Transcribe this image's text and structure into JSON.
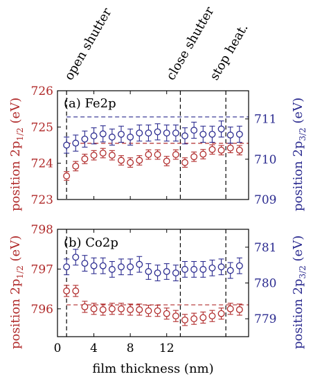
{
  "colors": {
    "red": "#b02a2a",
    "blue": "#2a2a8f",
    "axis": "#000000"
  },
  "x_tick_labels": [
    "0",
    "4",
    "8",
    "12"
  ],
  "xlabel": "film thickness (nm)",
  "events": [
    {
      "label": "open shutter",
      "x": 1
    },
    {
      "label": "close shutter",
      "x": 13.5
    },
    {
      "label": "stop heat.",
      "x": 18.5
    }
  ],
  "chart_data": [
    {
      "type": "scatter",
      "panel_label": "(a) Fe2p",
      "xlim": [
        0,
        21
      ],
      "x_ticks": [
        0,
        4,
        8,
        12
      ],
      "y_left": {
        "label_main": "position 2p",
        "label_sub": "1/2",
        "label_unit": " (eV)",
        "lim": [
          723,
          726
        ],
        "ticks": [
          723,
          724,
          725,
          726
        ]
      },
      "y_right": {
        "label_main": "position 2p",
        "label_sub": "3/2",
        "label_unit": " (eV)",
        "lim": [
          709,
          711.7
        ],
        "ticks": [
          709,
          710,
          711
        ]
      },
      "ref_line_left": 724.55,
      "ref_line_right": 711.05,
      "series": [
        {
          "axis": "left",
          "x": [
            1,
            2,
            3,
            4,
            5,
            6,
            7,
            8,
            9,
            10,
            11,
            12,
            13,
            14,
            15,
            16,
            17,
            18,
            19,
            20
          ],
          "y": [
            723.65,
            723.92,
            724.12,
            724.22,
            724.28,
            724.22,
            724.08,
            724.02,
            724.08,
            724.24,
            724.24,
            724.06,
            724.24,
            724.02,
            724.18,
            724.25,
            724.38,
            724.36,
            724.42,
            724.36
          ],
          "err": [
            0.12,
            0.13,
            0.13,
            0.13,
            0.13,
            0.13,
            0.13,
            0.13,
            0.13,
            0.13,
            0.13,
            0.13,
            0.13,
            0.13,
            0.13,
            0.13,
            0.13,
            0.13,
            0.13,
            0.13
          ]
        },
        {
          "axis": "right",
          "x": [
            1,
            2,
            3,
            4,
            5,
            6,
            7,
            8,
            9,
            10,
            11,
            12,
            13,
            14,
            15,
            16,
            17,
            18,
            19,
            20
          ],
          "y": [
            710.35,
            710.4,
            710.5,
            710.58,
            710.63,
            710.55,
            710.62,
            710.55,
            710.65,
            710.65,
            710.68,
            710.65,
            710.65,
            710.58,
            710.72,
            710.62,
            710.62,
            710.75,
            710.6,
            710.62
          ],
          "err": [
            0.2,
            0.2,
            0.2,
            0.2,
            0.2,
            0.2,
            0.2,
            0.2,
            0.2,
            0.2,
            0.2,
            0.2,
            0.2,
            0.2,
            0.2,
            0.2,
            0.2,
            0.2,
            0.2,
            0.2
          ]
        }
      ]
    },
    {
      "type": "scatter",
      "panel_label": "(b) Co2p",
      "xlim": [
        0,
        21
      ],
      "x_ticks": [
        0,
        4,
        8,
        12
      ],
      "y_left": {
        "label_main": "position 2p",
        "label_sub": "1/2",
        "label_unit": " (eV)",
        "lim": [
          795.3,
          798
        ],
        "ticks": [
          796,
          797,
          798
        ]
      },
      "y_right": {
        "label_main": "position 2p",
        "label_sub": "3/2",
        "label_unit": " (eV)",
        "lim": [
          778.5,
          781.5
        ],
        "ticks": [
          779,
          780,
          781
        ]
      },
      "ref_line_left": 796.1,
      "series": [
        {
          "axis": "left",
          "x": [
            1,
            2,
            3,
            4,
            5,
            6,
            7,
            8,
            9,
            10,
            11,
            12,
            13,
            14,
            15,
            16,
            17,
            18,
            19,
            20
          ],
          "y": [
            796.45,
            796.45,
            796.05,
            796.0,
            795.98,
            796.0,
            796.0,
            795.98,
            795.98,
            795.95,
            795.95,
            795.88,
            795.82,
            795.72,
            795.75,
            795.78,
            795.82,
            795.88,
            796.0,
            795.98
          ],
          "err": [
            0.14,
            0.14,
            0.14,
            0.14,
            0.14,
            0.14,
            0.14,
            0.14,
            0.14,
            0.14,
            0.14,
            0.14,
            0.14,
            0.14,
            0.14,
            0.14,
            0.14,
            0.14,
            0.14,
            0.14
          ]
        },
        {
          "axis": "right",
          "x": [
            1,
            2,
            3,
            4,
            5,
            6,
            7,
            8,
            9,
            10,
            11,
            12,
            13,
            14,
            15,
            16,
            17,
            18,
            19,
            20
          ],
          "y": [
            780.45,
            780.72,
            780.55,
            780.48,
            780.48,
            780.38,
            780.45,
            780.45,
            780.52,
            780.32,
            780.28,
            780.32,
            780.28,
            780.38,
            780.38,
            780.38,
            780.42,
            780.45,
            780.35,
            780.48
          ],
          "err": [
            0.22,
            0.22,
            0.22,
            0.22,
            0.22,
            0.22,
            0.22,
            0.22,
            0.22,
            0.22,
            0.22,
            0.22,
            0.22,
            0.22,
            0.22,
            0.22,
            0.22,
            0.22,
            0.22,
            0.22
          ]
        }
      ]
    }
  ]
}
